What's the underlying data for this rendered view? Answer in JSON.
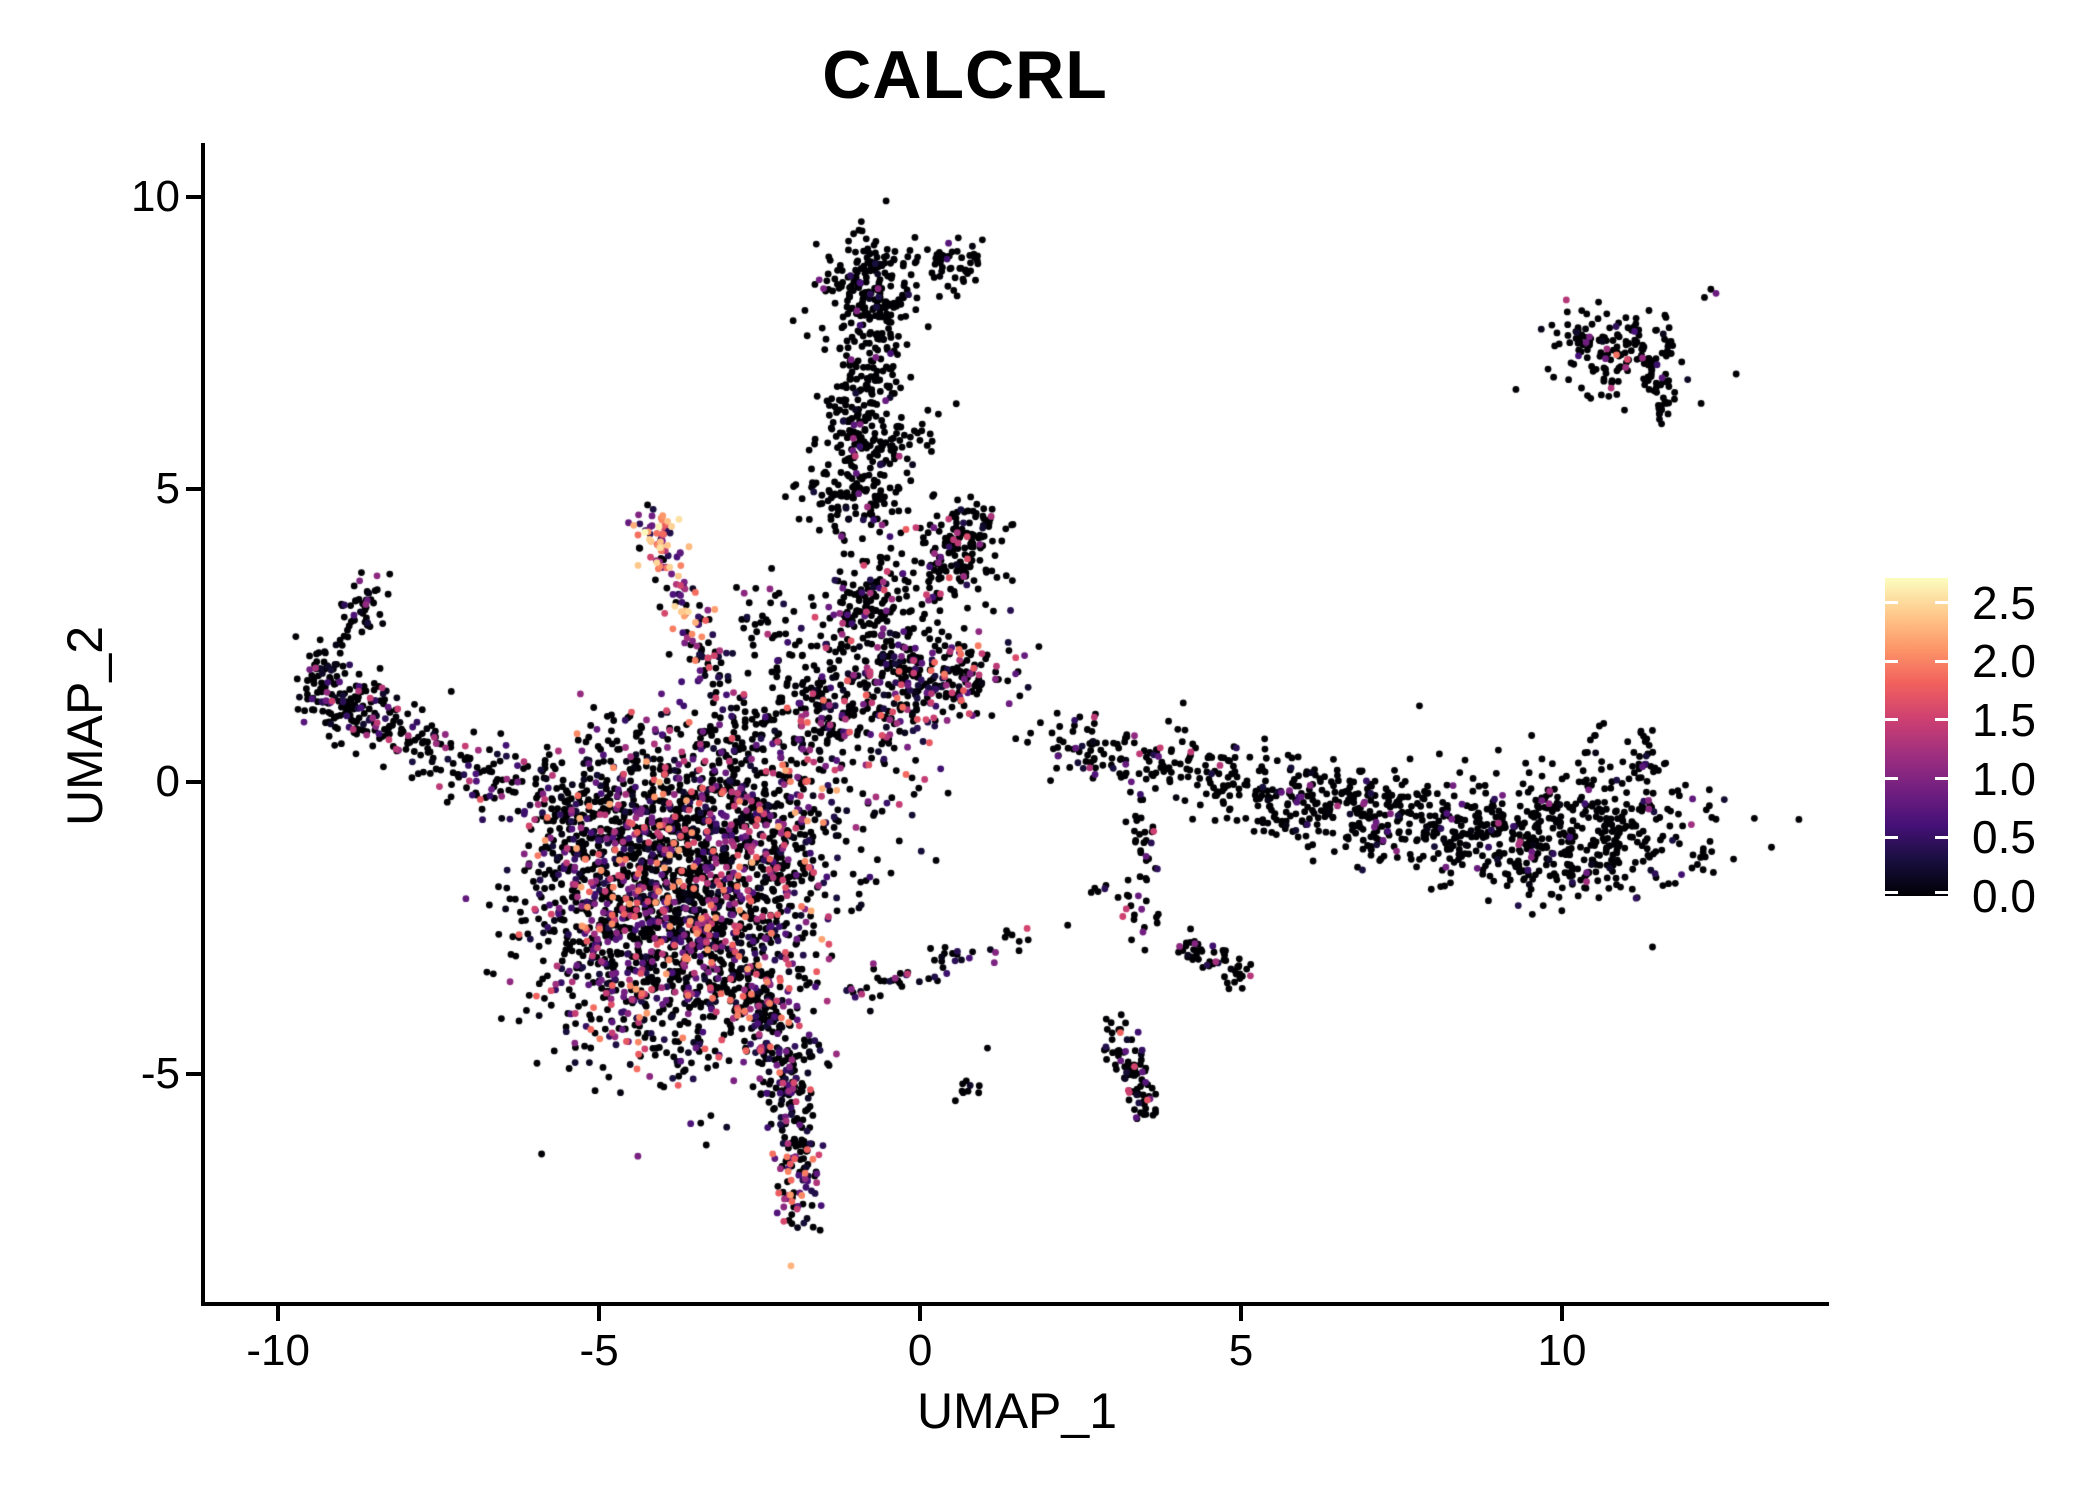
{
  "title": "CALCRL",
  "axes": {
    "x": {
      "label": "UMAP_1",
      "ticks": [
        -10,
        -5,
        0,
        5,
        10
      ],
      "range": [
        -11.14,
        14.16
      ]
    },
    "y": {
      "label": "UMAP_2",
      "ticks": [
        10,
        5,
        0,
        -5
      ],
      "range": [
        -8.89,
        10.92
      ]
    }
  },
  "legend": {
    "tick_labels": [
      "2.5",
      "2.0",
      "1.5",
      "1.0",
      "0.5",
      "0.0"
    ],
    "tick_values": [
      2.5,
      2.0,
      1.5,
      1.0,
      0.5,
      0.0
    ],
    "domain": [
      0,
      2.71
    ]
  },
  "colors": {
    "background": "#ffffff",
    "axis": "#000000",
    "text": "#000000",
    "colormap_name": "magma",
    "colormap_stops": [
      "#000004",
      "#180f3e",
      "#451077",
      "#721f81",
      "#9f2f7f",
      "#cd4071",
      "#f1605d",
      "#fd9668",
      "#feca8d",
      "#fcfdbf"
    ]
  },
  "chart_data": {
    "type": "scatter",
    "title": "CALCRL",
    "xlabel": "UMAP_1",
    "ylabel": "UMAP_2",
    "xlim": [
      -11.14,
      14.16
    ],
    "ylim": [
      -8.89,
      10.92
    ],
    "grid": false,
    "legend_position": "right",
    "color_scale": {
      "domain": [
        0,
        2.71
      ],
      "ticks": [
        0.0,
        0.5,
        1.0,
        1.5,
        2.0,
        2.5
      ]
    },
    "point_radius": 3.4,
    "seed": 11,
    "clusters": [
      {
        "name": "left-arm-hook-top",
        "type": "strip",
        "x1": -8.45,
        "y1": 3.3,
        "x2": -9.0,
        "y2": 2.55,
        "jx": 0.16,
        "jy": 0.16,
        "n": 48,
        "expr": {
          "frac": 0.22,
          "max": 1.3
        }
      },
      {
        "name": "left-arm-left-edge",
        "type": "strip",
        "x1": -9.3,
        "y1": 2.3,
        "x2": -9.45,
        "y2": 1.3,
        "jx": 0.15,
        "jy": 0.2,
        "n": 55,
        "expr": {
          "frac": 0.25,
          "max": 1.4
        }
      },
      {
        "name": "left-arm-elbow",
        "type": "gauss",
        "cx": -9.0,
        "cy": 1.35,
        "sx": 0.3,
        "sy": 0.28,
        "n": 70,
        "expr": {
          "frac": 0.28,
          "max": 1.5
        }
      },
      {
        "name": "left-arm-body",
        "type": "strip",
        "x1": -8.8,
        "y1": 1.2,
        "x2": -7.5,
        "y2": 0.45,
        "jx": 0.26,
        "jy": 0.26,
        "n": 110,
        "expr": {
          "frac": 0.25,
          "max": 1.5
        }
      },
      {
        "name": "left-arm-trail",
        "type": "strip",
        "x1": -7.5,
        "y1": 0.4,
        "x2": -6.0,
        "y2": -0.15,
        "jx": 0.3,
        "jy": 0.32,
        "n": 75,
        "expr": {
          "frac": 0.25,
          "max": 1.5
        }
      },
      {
        "name": "left-arm-join",
        "type": "strip",
        "x1": -6.0,
        "y1": -0.15,
        "x2": -5.1,
        "y2": -0.45,
        "jx": 0.35,
        "jy": 0.4,
        "n": 60,
        "expr": {
          "frac": 0.3,
          "max": 1.5
        }
      },
      {
        "name": "main-blob-core",
        "type": "gauss",
        "cx": -3.9,
        "cy": -2.3,
        "sx": 1.05,
        "sy": 1.25,
        "n": 1500,
        "expr": {
          "frac": 0.42,
          "max": 2.2
        }
      },
      {
        "name": "main-blob-top",
        "type": "gauss",
        "cx": -3.2,
        "cy": -0.55,
        "sx": 1.25,
        "sy": 0.65,
        "n": 480,
        "expr": {
          "frac": 0.45,
          "max": 2.3
        }
      },
      {
        "name": "main-blob-left",
        "type": "gauss",
        "cx": -5.1,
        "cy": -1.4,
        "sx": 0.5,
        "sy": 0.8,
        "n": 140,
        "expr": {
          "frac": 0.3,
          "max": 1.6
        }
      },
      {
        "name": "main-blob-right",
        "type": "gauss",
        "cx": -2.25,
        "cy": -1.7,
        "sx": 0.5,
        "sy": 0.95,
        "n": 170,
        "expr": {
          "frac": 0.35,
          "max": 1.8
        }
      },
      {
        "name": "blob-south-spur",
        "type": "strip",
        "x1": -2.9,
        "y1": -3.1,
        "x2": -2.05,
        "y2": -4.6,
        "jx": 0.32,
        "jy": 0.35,
        "n": 190,
        "expr": {
          "frac": 0.4,
          "max": 2.0
        }
      },
      {
        "name": "south-tail",
        "type": "strip",
        "x1": -2.1,
        "y1": -4.8,
        "x2": -1.85,
        "y2": -6.5,
        "jx": 0.2,
        "jy": 0.3,
        "n": 120,
        "expr": {
          "frac": 0.35,
          "max": 1.8
        }
      },
      {
        "name": "south-tail-tip",
        "type": "gauss",
        "cx": -1.92,
        "cy": -6.95,
        "sx": 0.17,
        "sy": 0.42,
        "n": 60,
        "expr": {
          "frac": 0.6,
          "max": 2.3,
          "pow": 1.1
        }
      },
      {
        "name": "bright-wedge",
        "type": "strip",
        "x1": -4.2,
        "y1": 4.35,
        "x2": -3.45,
        "y2": 2.6,
        "jx": 0.2,
        "jy": 0.22,
        "n": 85,
        "expr": {
          "frac": 0.85,
          "max": 2.5,
          "pow": 0.9
        }
      },
      {
        "name": "bright-wedge-tip",
        "type": "gauss",
        "cx": -4.1,
        "cy": 4.3,
        "sx": 0.18,
        "sy": 0.16,
        "n": 22,
        "expr": {
          "frac": 0.92,
          "max": 2.7,
          "pow": 0.7
        }
      },
      {
        "name": "wedge-trail",
        "type": "strip",
        "x1": -3.45,
        "y1": 2.6,
        "x2": -3.05,
        "y2": 1.25,
        "jx": 0.16,
        "jy": 0.2,
        "n": 45,
        "expr": {
          "frac": 0.5,
          "max": 2.0
        }
      },
      {
        "name": "wedge-west-scatter",
        "type": "gauss",
        "cx": -4.2,
        "cy": 0.55,
        "sx": 0.55,
        "sy": 0.45,
        "n": 85,
        "expr": {
          "frac": 0.4,
          "max": 1.9
        }
      },
      {
        "name": "blob-north-bridge",
        "type": "gauss",
        "cx": -2.9,
        "cy": 0.55,
        "sx": 0.3,
        "sy": 0.4,
        "n": 50,
        "expr": {
          "frac": 0.35,
          "max": 1.7
        }
      },
      {
        "name": "wedge-east-scatter",
        "type": "gauss",
        "cx": -2.4,
        "cy": 2.6,
        "sx": 0.35,
        "sy": 0.5,
        "n": 40,
        "expr": {
          "frac": 0.3,
          "max": 1.6
        }
      },
      {
        "name": "mid-band",
        "type": "gauss",
        "cx": -1.25,
        "cy": 1.1,
        "sx": 0.75,
        "sy": 0.5,
        "n": 280,
        "expr": {
          "frac": 0.38,
          "max": 1.9
        }
      },
      {
        "name": "mid-column",
        "type": "strip",
        "x1": -1.3,
        "y1": 2.2,
        "x2": -0.55,
        "y2": 3.6,
        "jx": 0.35,
        "jy": 0.4,
        "n": 150,
        "expr": {
          "frac": 0.25,
          "max": 1.7
        }
      },
      {
        "name": "mid-cluster",
        "type": "gauss",
        "cx": 0.55,
        "cy": 3.8,
        "sx": 0.32,
        "sy": 0.38,
        "n": 130,
        "expr": {
          "frac": 0.18,
          "max": 1.8
        }
      },
      {
        "name": "mid-cluster-lobe",
        "type": "gauss",
        "cx": 0.9,
        "cy": 4.35,
        "sx": 0.25,
        "sy": 0.2,
        "n": 40,
        "expr": {
          "frac": 0.15,
          "max": 1.5
        }
      },
      {
        "name": "colorful-band",
        "type": "gauss",
        "cx": 0.45,
        "cy": 1.75,
        "sx": 0.55,
        "sy": 0.38,
        "n": 170,
        "expr": {
          "frac": 0.5,
          "max": 2.0,
          "pow": 1.2
        }
      },
      {
        "name": "band-west",
        "type": "gauss",
        "cx": -0.35,
        "cy": 2.35,
        "sx": 0.45,
        "sy": 0.45,
        "n": 90,
        "expr": {
          "frac": 0.35,
          "max": 1.8
        }
      },
      {
        "name": "stream-base",
        "type": "gauss",
        "cx": -1.0,
        "cy": 4.9,
        "sx": 0.5,
        "sy": 0.4,
        "n": 120,
        "expr": {
          "frac": 0.12,
          "max": 1.4
        }
      },
      {
        "name": "stream",
        "type": "strip",
        "x1": -0.95,
        "y1": 5.3,
        "x2": -0.75,
        "y2": 7.9,
        "jx": 0.33,
        "jy": 0.35,
        "n": 260,
        "expr": {
          "frac": 0.1,
          "max": 1.4
        }
      },
      {
        "name": "stream-head",
        "type": "gauss",
        "cx": -0.8,
        "cy": 8.55,
        "sx": 0.42,
        "sy": 0.4,
        "n": 170,
        "expr": {
          "frac": 0.08,
          "max": 1.2
        }
      },
      {
        "name": "stream-head-east",
        "type": "gauss",
        "cx": 0.55,
        "cy": 8.9,
        "sx": 0.25,
        "sy": 0.22,
        "n": 45,
        "expr": {
          "frac": 0.08,
          "max": 1.0
        }
      },
      {
        "name": "stream-east-sparse",
        "type": "strip",
        "x1": -0.3,
        "y1": 5.5,
        "x2": 0.45,
        "y2": 6.5,
        "jx": 0.25,
        "jy": 0.3,
        "n": 22,
        "expr": {
          "frac": 0.1,
          "max": 1.2
        }
      },
      {
        "name": "east-band-sparse",
        "type": "strip",
        "x1": 1.9,
        "y1": 0.75,
        "x2": 4.9,
        "y2": 0.0,
        "jx": 0.3,
        "jy": 0.28,
        "n": 150,
        "expr": {
          "frac": 0.18,
          "max": 1.6
        }
      },
      {
        "name": "east-band",
        "type": "strip",
        "x1": 5.0,
        "y1": -0.1,
        "x2": 8.4,
        "y2": -0.8,
        "jx": 0.4,
        "jy": 0.35,
        "n": 330,
        "expr": {
          "frac": 0.1,
          "max": 1.3
        }
      },
      {
        "name": "east-mass",
        "type": "gauss",
        "cx": 9.8,
        "cy": -0.95,
        "sx": 1.2,
        "sy": 0.52,
        "n": 520,
        "expr": {
          "frac": 0.1,
          "max": 1.3
        }
      },
      {
        "name": "east-mass-spike-1",
        "type": "strip",
        "x1": 11.35,
        "y1": 0.0,
        "x2": 11.25,
        "y2": 1.0,
        "jx": 0.13,
        "jy": 0.18,
        "n": 30,
        "expr": {
          "frac": 0.1,
          "max": 1.0
        }
      },
      {
        "name": "east-mass-spike-2",
        "type": "strip",
        "x1": 10.4,
        "y1": -0.2,
        "x2": 10.5,
        "y2": 0.85,
        "jx": 0.12,
        "jy": 0.15,
        "n": 16,
        "expr": {
          "frac": 0.08,
          "max": 1.0
        }
      },
      {
        "name": "band-dangle",
        "type": "strip",
        "x1": 3.45,
        "y1": -0.45,
        "x2": 3.5,
        "y2": -2.55,
        "jx": 0.14,
        "jy": 0.25,
        "n": 45,
        "expr": {
          "frac": 0.2,
          "max": 1.6
        }
      },
      {
        "name": "ne-cluster",
        "type": "gauss",
        "cx": 11.0,
        "cy": 7.3,
        "sx": 0.55,
        "sy": 0.4,
        "n": 140,
        "expr": {
          "frac": 0.13,
          "max": 1.5
        }
      },
      {
        "name": "ne-cluster-west-tip",
        "type": "strip",
        "x1": 9.95,
        "y1": 7.8,
        "x2": 10.45,
        "y2": 7.55,
        "jx": 0.12,
        "jy": 0.1,
        "n": 22,
        "expr": {
          "frac": 0.1,
          "max": 1.0
        }
      },
      {
        "name": "ne-cluster-south-tail",
        "type": "strip",
        "x1": 11.5,
        "y1": 6.95,
        "x2": 11.6,
        "y2": 6.3,
        "jx": 0.12,
        "jy": 0.15,
        "n": 30,
        "expr": {
          "frac": 0.08,
          "max": 1.0
        }
      },
      {
        "name": "ne-cluster-highlights",
        "type": "points",
        "pts": [
          [
            10.85,
            7.3,
            1.9
          ],
          [
            11.02,
            7.22,
            1.6
          ],
          [
            10.7,
            7.4,
            1.2
          ],
          [
            12.4,
            8.35,
            0.85
          ],
          [
            12.22,
            8.28,
            0
          ],
          [
            12.32,
            8.42,
            0
          ]
        ]
      },
      {
        "name": "se-streak",
        "type": "strip",
        "x1": 2.98,
        "y1": -4.15,
        "x2": 3.55,
        "y2": -5.7,
        "jx": 0.15,
        "jy": 0.22,
        "n": 85,
        "expr": {
          "frac": 0.3,
          "max": 1.9
        }
      },
      {
        "name": "se-small-cluster",
        "type": "strip",
        "x1": 4.15,
        "y1": -2.75,
        "x2": 5.05,
        "y2": -3.35,
        "jx": 0.15,
        "jy": 0.13,
        "n": 55,
        "expr": {
          "frac": 0.15,
          "max": 1.4
        }
      },
      {
        "name": "se-pair",
        "type": "gauss",
        "cx": 0.75,
        "cy": -5.25,
        "sx": 0.13,
        "sy": 0.12,
        "n": 8,
        "expr": {
          "frac": 0.1,
          "max": 0.8
        }
      },
      {
        "name": "diag-line",
        "type": "strip",
        "x1": -1.15,
        "y1": -3.6,
        "x2": 1.6,
        "y2": -2.65,
        "jx": 0.15,
        "jy": 0.13,
        "n": 55,
        "expr": {
          "frac": 0.3,
          "max": 1.6
        }
      },
      {
        "name": "small-pair-east",
        "type": "gauss",
        "cx": 2.95,
        "cy": -1.95,
        "sx": 0.15,
        "sy": 0.12,
        "n": 7,
        "expr": {
          "frac": 0.15,
          "max": 1.0
        }
      },
      {
        "name": "sparse-outliers",
        "type": "points",
        "pts": [
          [
            10.65,
            1.0,
            0
          ],
          [
            7.78,
            1.3,
            0
          ],
          [
            4.1,
            1.35,
            0
          ],
          [
            0.55,
            -5.45,
            0
          ],
          [
            2.3,
            -2.45,
            0
          ],
          [
            1.05,
            -4.55,
            0
          ],
          [
            -6.85,
            -0.3,
            1.7
          ],
          [
            0.1,
            3.2,
            1.5
          ]
        ]
      }
    ]
  }
}
